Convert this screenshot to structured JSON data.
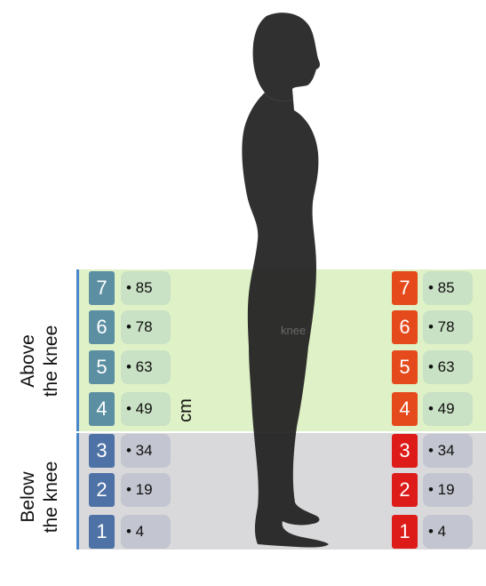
{
  "zones": {
    "above_label_line1": "Above",
    "above_label_line2": "the knee",
    "below_label_line1": "Below",
    "below_label_line2": "the knee"
  },
  "unit": "cm",
  "knee_label": "knee",
  "colors": {
    "above_zone": "#dff1c6",
    "below_zone": "#d9d9db",
    "left_above_badge": "#5c8fa2",
    "left_below_badge": "#4f72a6",
    "right_above_badge": "#e54a1c",
    "right_below_badge": "#dd1c1a"
  },
  "left_scale": [
    {
      "num": "7",
      "value": "• 85"
    },
    {
      "num": "6",
      "value": "• 78"
    },
    {
      "num": "5",
      "value": "• 63"
    },
    {
      "num": "4",
      "value": "• 49"
    },
    {
      "num": "3",
      "value": "• 34"
    },
    {
      "num": "2",
      "value": "• 19"
    },
    {
      "num": "1",
      "value": "• 4"
    }
  ],
  "right_scale": [
    {
      "num": "7",
      "value": "• 85"
    },
    {
      "num": "6",
      "value": "• 78"
    },
    {
      "num": "5",
      "value": "• 63"
    },
    {
      "num": "4",
      "value": "• 49"
    },
    {
      "num": "3",
      "value": "• 34"
    },
    {
      "num": "2",
      "value": "• 19"
    },
    {
      "num": "1",
      "value": "• 4"
    }
  ]
}
